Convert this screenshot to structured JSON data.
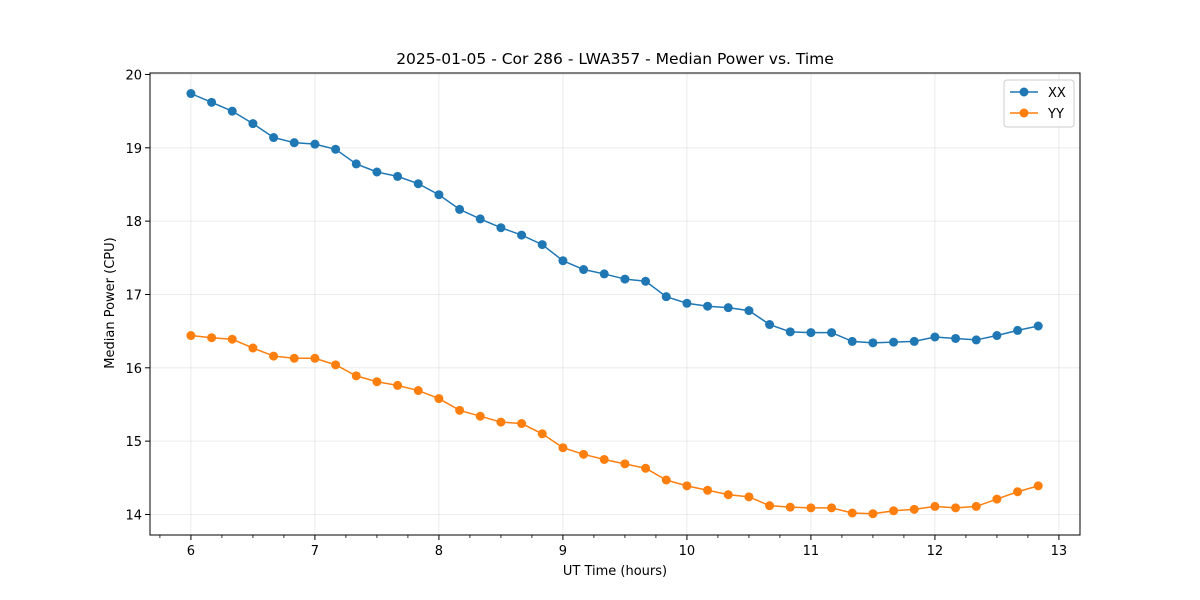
{
  "chart_data": {
    "type": "line",
    "title": "2025-01-05 - Cor 286 - LWA357 - Median Power vs. Time",
    "xlabel": "UT Time (hours)",
    "ylabel": "Median Power (CPU)",
    "xlim": [
      5.67,
      13.17
    ],
    "ylim": [
      13.72,
      20.02
    ],
    "xticks": [
      6,
      7,
      8,
      9,
      10,
      11,
      12,
      13
    ],
    "xtick_labels": [
      "6",
      "7",
      "8",
      "9",
      "10",
      "11",
      "12",
      "13"
    ],
    "yticks": [
      14,
      15,
      16,
      17,
      18,
      19,
      20
    ],
    "ytick_labels": [
      "14",
      "15",
      "16",
      "17",
      "18",
      "19",
      "20"
    ],
    "grid": true,
    "legend_position": "top-right",
    "x": [
      6.0,
      6.1667,
      6.3333,
      6.5,
      6.6667,
      6.8333,
      7.0,
      7.1667,
      7.3333,
      7.5,
      7.6667,
      7.8333,
      8.0,
      8.1667,
      8.3333,
      8.5,
      8.6667,
      8.8333,
      9.0,
      9.1667,
      9.3333,
      9.5,
      9.6667,
      9.8333,
      10.0,
      10.1667,
      10.3333,
      10.5,
      10.6667,
      10.8333,
      11.0,
      11.1667,
      11.3333,
      11.5,
      11.6667,
      11.8333,
      12.0,
      12.1667,
      12.3333,
      12.5,
      12.6667,
      12.8333
    ],
    "series": [
      {
        "name": "XX",
        "color": "#1f77b4",
        "values": [
          19.74,
          19.62,
          19.5,
          19.33,
          19.14,
          19.07,
          19.05,
          18.98,
          18.78,
          18.67,
          18.61,
          18.51,
          18.36,
          18.16,
          18.03,
          17.91,
          17.81,
          17.68,
          17.46,
          17.34,
          17.28,
          17.21,
          17.18,
          16.97,
          16.88,
          16.84,
          16.82,
          16.78,
          16.59,
          16.49,
          16.48,
          16.48,
          16.36,
          16.34,
          16.35,
          16.36,
          16.42,
          16.4,
          16.38,
          16.44,
          16.51,
          16.57
        ]
      },
      {
        "name": "YY",
        "color": "#ff7f0e",
        "values": [
          16.44,
          16.41,
          16.39,
          16.27,
          16.16,
          16.13,
          16.13,
          16.04,
          15.89,
          15.81,
          15.76,
          15.69,
          15.58,
          15.42,
          15.34,
          15.26,
          15.24,
          15.1,
          14.91,
          14.82,
          14.75,
          14.69,
          14.63,
          14.47,
          14.39,
          14.33,
          14.27,
          14.24,
          14.12,
          14.1,
          14.09,
          14.09,
          14.02,
          14.01,
          14.05,
          14.07,
          14.11,
          14.09,
          14.11,
          14.21,
          14.31,
          14.39
        ]
      }
    ]
  }
}
